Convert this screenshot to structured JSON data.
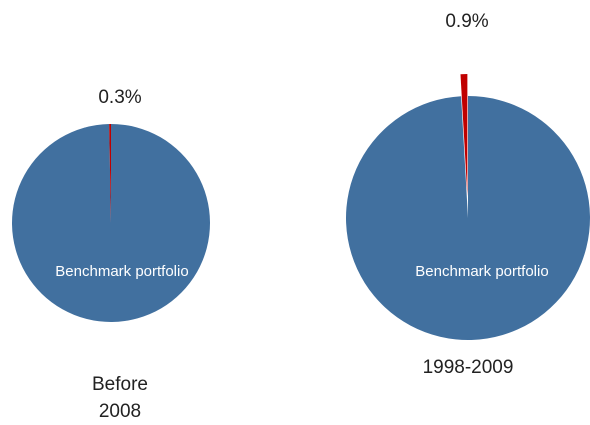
{
  "chart_data": [
    {
      "type": "pie",
      "categories": [
        "Benchmark portfolio",
        null
      ],
      "values": [
        99.7,
        0.3
      ],
      "value_labels": [
        null,
        "0.3%"
      ],
      "colors": [
        "#41709f",
        "#c00000"
      ],
      "caption": [
        "Before",
        "2008"
      ]
    },
    {
      "type": "pie",
      "categories": [
        "Benchmark portfolio",
        null
      ],
      "values": [
        99.1,
        0.9
      ],
      "value_labels": [
        null,
        "0.9%"
      ],
      "colors": [
        "#41709f",
        "#c00000"
      ],
      "explode": [
        0,
        1
      ],
      "caption": [
        "1998-2009"
      ]
    }
  ]
}
